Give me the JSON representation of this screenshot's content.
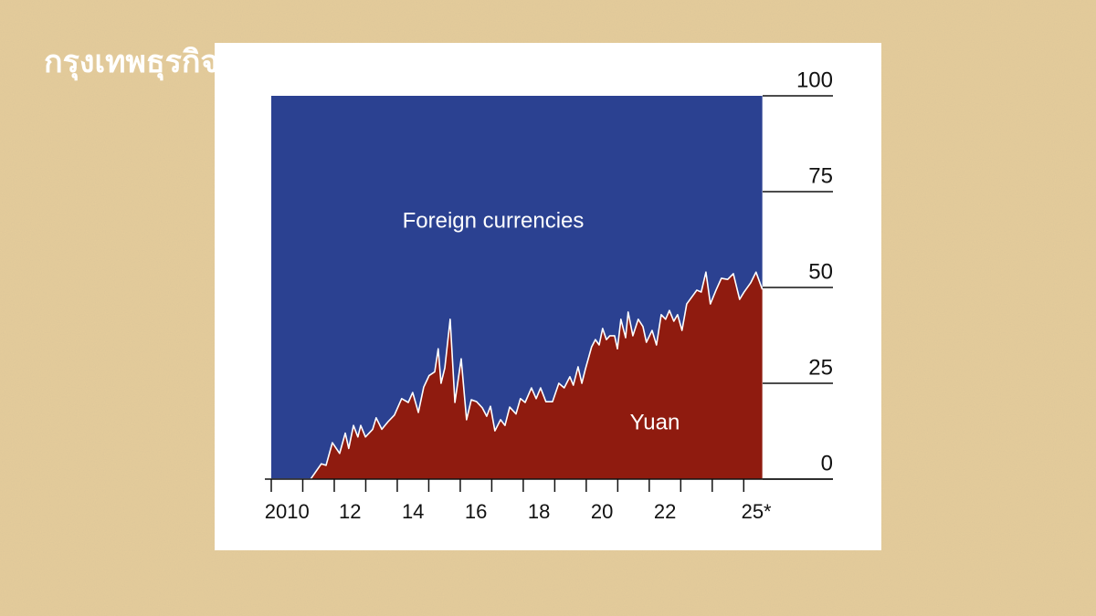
{
  "watermark": "กรุงเทพธุรกิจ",
  "chart_data": {
    "type": "stacked_area",
    "x": [
      2010,
      2011.25,
      2011.59,
      2011.74,
      2011.94,
      2012.17,
      2012.35,
      2012.46,
      2012.61,
      2012.75,
      2012.84,
      2012.99,
      2013.22,
      2013.33,
      2013.51,
      2013.71,
      2013.91,
      2014.14,
      2014.35,
      2014.49,
      2014.67,
      2014.84,
      2015.01,
      2015.19,
      2015.3,
      2015.39,
      2015.51,
      2015.68,
      2015.83,
      2016.03,
      2016.2,
      2016.35,
      2016.52,
      2016.7,
      2016.84,
      2016.96,
      2017.1,
      2017.28,
      2017.42,
      2017.57,
      2017.77,
      2017.91,
      2018.06,
      2018.26,
      2018.41,
      2018.55,
      2018.72,
      2018.93,
      2019.13,
      2019.3,
      2019.48,
      2019.59,
      2019.74,
      2019.86,
      2019.97,
      2020.17,
      2020.29,
      2020.41,
      2020.52,
      2020.64,
      2020.75,
      2020.9,
      2020.99,
      2021.1,
      2021.25,
      2021.33,
      2021.48,
      2021.65,
      2021.8,
      2021.91,
      2022.09,
      2022.23,
      2022.38,
      2022.52,
      2022.64,
      2022.78,
      2022.9,
      2023.04,
      2023.19,
      2023.36,
      2023.51,
      2023.65,
      2023.8,
      2023.94,
      2024.12,
      2024.29,
      2024.49,
      2024.67,
      2024.87,
      2025.01,
      2025.22,
      2025.39,
      2025.59
    ],
    "series": [
      {
        "name": "Yuan",
        "color": "#8f1b0f",
        "values": [
          0,
          0,
          4,
          3.6,
          9.5,
          6.7,
          12,
          8,
          14,
          11,
          14,
          11,
          13,
          16,
          13,
          15,
          16.7,
          21,
          20,
          22.6,
          17.4,
          24,
          27,
          28,
          34,
          25,
          29,
          41.7,
          20,
          31.4,
          15.5,
          20.7,
          20.2,
          18.6,
          16.4,
          19,
          12.6,
          15.5,
          14,
          18.8,
          17,
          21,
          20,
          23.8,
          21,
          23.8,
          20.2,
          20.2,
          25,
          23.8,
          26.7,
          24.5,
          29.3,
          25,
          28.6,
          34.5,
          36.4,
          35,
          39.3,
          36.4,
          37.4,
          37.4,
          34,
          41.7,
          36.9,
          43.6,
          37.4,
          41.7,
          39.8,
          35.7,
          38.8,
          35,
          42.9,
          41.7,
          44,
          41.2,
          42.9,
          38.8,
          45.7,
          47.6,
          49.3,
          48.8,
          54,
          45.7,
          49.3,
          52.4,
          52.1,
          53.6,
          46.9,
          48.8,
          51.2,
          54,
          49.5
        ]
      },
      {
        "name": "Foreign currencies",
        "color": "#2b4191",
        "values": [
          100,
          100,
          96,
          96.4,
          90.5,
          93.3,
          88,
          92,
          86,
          89,
          86,
          89,
          87,
          84,
          87,
          85,
          83.3,
          79,
          80,
          77.4,
          82.6,
          76,
          73,
          72,
          66,
          75,
          71,
          58.3,
          80,
          68.6,
          84.5,
          79.3,
          79.8,
          81.4,
          83.6,
          81,
          87.4,
          84.5,
          86,
          81.2,
          83,
          79,
          80,
          76.2,
          79,
          76.2,
          79.8,
          79.8,
          75,
          76.2,
          73.3,
          75.5,
          70.7,
          75,
          71.4,
          65.5,
          63.6,
          65,
          60.7,
          63.6,
          62.6,
          62.6,
          66,
          58.3,
          63.1,
          56.4,
          62.6,
          58.3,
          60.2,
          64.3,
          61.2,
          65,
          57.1,
          58.3,
          56,
          58.8,
          57.1,
          61.2,
          54.3,
          52.4,
          50.7,
          51.2,
          46,
          54.3,
          50.7,
          47.6,
          47.9,
          46.4,
          53.1,
          51.2,
          48.8,
          46,
          50.5
        ]
      }
    ],
    "xlim": [
      2010,
      2025.6
    ],
    "xticks": [
      2010,
      2011,
      2012,
      2013,
      2014,
      2015,
      2016,
      2017,
      2018,
      2019,
      2020,
      2021,
      2022,
      2023,
      2024,
      2025
    ],
    "xtick_labels": [
      {
        "value": 2010.5,
        "label": "2010"
      },
      {
        "value": 2012.5,
        "label": "12"
      },
      {
        "value": 2014.5,
        "label": "14"
      },
      {
        "value": 2016.5,
        "label": "16"
      },
      {
        "value": 2018.5,
        "label": "18"
      },
      {
        "value": 2020.5,
        "label": "20"
      },
      {
        "value": 2022.5,
        "label": "22"
      },
      {
        "value": 2025.4,
        "label": "25*"
      }
    ],
    "ylim": [
      0,
      100
    ],
    "yticks": [
      0,
      25,
      50,
      75,
      100
    ],
    "annotations": [
      "Foreign currencies",
      "Yuan"
    ]
  }
}
